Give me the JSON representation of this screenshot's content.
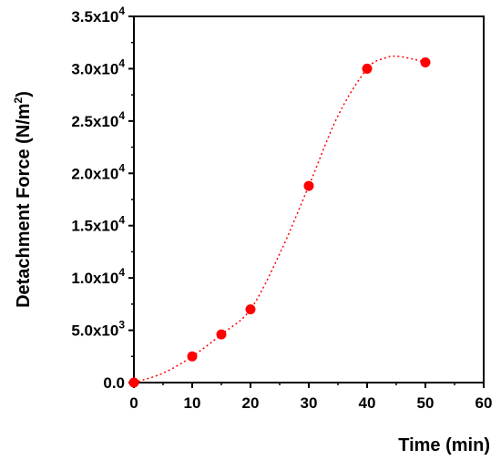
{
  "chart_data": {
    "type": "scatter",
    "xlabel": "Time (min)",
    "ylabel_main": "Detachment Force (N/m",
    "ylabel_sup": "2",
    "ylabel_close": ")",
    "xlim": [
      0,
      60
    ],
    "ylim": [
      0,
      35000
    ],
    "x_ticks": [
      0,
      10,
      20,
      30,
      40,
      50,
      60
    ],
    "x_tick_labels": [
      "0",
      "10",
      "20",
      "30",
      "40",
      "50",
      "60"
    ],
    "y_ticks": [
      0,
      5000,
      10000,
      15000,
      20000,
      25000,
      30000,
      35000
    ],
    "y_tick_labels": [
      {
        "base": "0.0",
        "exp": ""
      },
      {
        "base": "5.0x10",
        "exp": "3"
      },
      {
        "base": "1.0x10",
        "exp": "4"
      },
      {
        "base": "1.5x10",
        "exp": "4"
      },
      {
        "base": "2.0x10",
        "exp": "4"
      },
      {
        "base": "2.5x10",
        "exp": "4"
      },
      {
        "base": "3.0x10",
        "exp": "4"
      },
      {
        "base": "3.5x10",
        "exp": "4"
      }
    ],
    "grid": false,
    "legend": "none",
    "marker_color": "#ff0000",
    "curve_color": "#ff0000",
    "points": [
      {
        "x": 0,
        "y": 0
      },
      {
        "x": 10,
        "y": 2500
      },
      {
        "x": 15,
        "y": 4600
      },
      {
        "x": 20,
        "y": 7000
      },
      {
        "x": 30,
        "y": 18800
      },
      {
        "x": 40,
        "y": 30000
      },
      {
        "x": 50,
        "y": 30600
      }
    ],
    "fit_curve": [
      {
        "x": 0,
        "y": 0
      },
      {
        "x": 5,
        "y": 900
      },
      {
        "x": 10,
        "y": 2500
      },
      {
        "x": 15,
        "y": 4600
      },
      {
        "x": 20,
        "y": 7000
      },
      {
        "x": 25,
        "y": 12300
      },
      {
        "x": 30,
        "y": 18800
      },
      {
        "x": 35,
        "y": 25500
      },
      {
        "x": 40,
        "y": 30000
      },
      {
        "x": 43,
        "y": 31000
      },
      {
        "x": 45,
        "y": 31200
      },
      {
        "x": 48,
        "y": 30900
      },
      {
        "x": 50,
        "y": 30600
      }
    ]
  }
}
